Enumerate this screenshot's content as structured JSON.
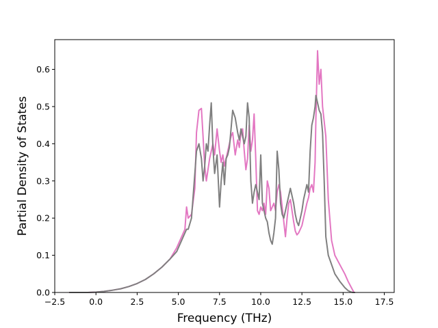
{
  "chart_data": {
    "type": "line",
    "title": "",
    "xlabel": "Frequency (THz)",
    "ylabel": "Partial Density of States",
    "xlim": [
      -2.5,
      18.1
    ],
    "ylim": [
      0.0,
      0.68
    ],
    "xticks": [
      -2.5,
      0.0,
      2.5,
      5.0,
      7.5,
      10.0,
      12.5,
      15.0,
      17.5
    ],
    "xtick_labels": [
      "−2.5",
      "0.0",
      "2.5",
      "5.0",
      "7.5",
      "10.0",
      "12.5",
      "15.0",
      "17.5"
    ],
    "yticks": [
      0.0,
      0.1,
      0.2,
      0.3,
      0.4,
      0.5,
      0.6
    ],
    "ytick_labels": [
      "0.0",
      "0.1",
      "0.2",
      "0.3",
      "0.4",
      "0.5",
      "0.6"
    ],
    "grid": false,
    "legend": "none",
    "series": [
      {
        "color": "#e377c2",
        "x": [
          -1.6,
          -0.5,
          0.0,
          0.5,
          1.0,
          1.5,
          2.0,
          2.5,
          3.0,
          3.5,
          4.0,
          4.5,
          4.9,
          5.2,
          5.4,
          5.5,
          5.6,
          5.8,
          6.0,
          6.1,
          6.25,
          6.4,
          6.5,
          6.6,
          6.7,
          6.8,
          6.9,
          7.0,
          7.1,
          7.2,
          7.35,
          7.5,
          7.6,
          7.7,
          7.8,
          7.9,
          8.0,
          8.1,
          8.2,
          8.3,
          8.45,
          8.6,
          8.7,
          8.8,
          8.9,
          9.0,
          9.1,
          9.2,
          9.3,
          9.4,
          9.5,
          9.6,
          9.7,
          9.8,
          9.9,
          10.0,
          10.1,
          10.2,
          10.3,
          10.4,
          10.5,
          10.6,
          10.7,
          10.8,
          10.9,
          11.0,
          11.1,
          11.2,
          11.3,
          11.4,
          11.5,
          11.6,
          11.7,
          11.8,
          11.9,
          12.0,
          12.1,
          12.2,
          12.3,
          12.4,
          12.5,
          12.6,
          12.7,
          12.8,
          12.9,
          13.0,
          13.1,
          13.2,
          13.3,
          13.35,
          13.45,
          13.55,
          13.65,
          13.75,
          13.85,
          13.95,
          14.1,
          14.3,
          14.5,
          14.8,
          15.1,
          15.3,
          15.5,
          15.6,
          15.65,
          15.7
        ],
        "y": [
          0.0,
          0.0,
          0.001,
          0.003,
          0.006,
          0.01,
          0.016,
          0.024,
          0.035,
          0.05,
          0.068,
          0.09,
          0.12,
          0.15,
          0.17,
          0.23,
          0.2,
          0.21,
          0.28,
          0.43,
          0.49,
          0.495,
          0.42,
          0.34,
          0.3,
          0.33,
          0.36,
          0.38,
          0.4,
          0.37,
          0.44,
          0.38,
          0.35,
          0.37,
          0.34,
          0.36,
          0.38,
          0.4,
          0.42,
          0.43,
          0.37,
          0.41,
          0.39,
          0.43,
          0.44,
          0.38,
          0.33,
          0.36,
          0.45,
          0.38,
          0.41,
          0.48,
          0.36,
          0.22,
          0.21,
          0.23,
          0.22,
          0.24,
          0.21,
          0.3,
          0.28,
          0.22,
          0.23,
          0.24,
          0.22,
          0.27,
          0.29,
          0.27,
          0.23,
          0.19,
          0.15,
          0.2,
          0.24,
          0.25,
          0.22,
          0.19,
          0.165,
          0.155,
          0.16,
          0.17,
          0.18,
          0.2,
          0.22,
          0.24,
          0.255,
          0.28,
          0.29,
          0.27,
          0.35,
          0.47,
          0.65,
          0.56,
          0.6,
          0.5,
          0.46,
          0.42,
          0.25,
          0.14,
          0.1,
          0.075,
          0.05,
          0.03,
          0.013,
          0.005,
          0.001,
          0.0
        ]
      },
      {
        "color": "#7f7f7f",
        "x": [
          -1.6,
          -0.5,
          0.0,
          0.5,
          1.0,
          1.5,
          2.0,
          2.5,
          3.0,
          3.5,
          4.0,
          4.5,
          4.9,
          5.2,
          5.4,
          5.5,
          5.6,
          5.8,
          6.0,
          6.1,
          6.25,
          6.4,
          6.5,
          6.6,
          6.7,
          6.8,
          6.9,
          7.0,
          7.1,
          7.2,
          7.35,
          7.5,
          7.6,
          7.7,
          7.8,
          7.9,
          8.0,
          8.1,
          8.2,
          8.3,
          8.45,
          8.6,
          8.7,
          8.8,
          8.9,
          9.0,
          9.1,
          9.2,
          9.3,
          9.4,
          9.5,
          9.6,
          9.7,
          9.8,
          9.9,
          10.0,
          10.1,
          10.2,
          10.3,
          10.4,
          10.5,
          10.6,
          10.7,
          10.8,
          10.9,
          11.0,
          11.1,
          11.2,
          11.3,
          11.4,
          11.5,
          11.6,
          11.7,
          11.8,
          11.9,
          12.0,
          12.1,
          12.2,
          12.3,
          12.4,
          12.5,
          12.6,
          12.7,
          12.8,
          12.9,
          13.0,
          13.1,
          13.2,
          13.3,
          13.35,
          13.45,
          13.55,
          13.65,
          13.75,
          13.85,
          13.95,
          14.1,
          14.3,
          14.5,
          14.8,
          15.1,
          15.3,
          15.5,
          15.6,
          15.65,
          15.7
        ],
        "y": [
          0.0,
          0.0,
          0.001,
          0.003,
          0.006,
          0.01,
          0.016,
          0.024,
          0.035,
          0.05,
          0.068,
          0.09,
          0.11,
          0.14,
          0.16,
          0.17,
          0.17,
          0.2,
          0.32,
          0.38,
          0.4,
          0.36,
          0.3,
          0.34,
          0.4,
          0.38,
          0.45,
          0.51,
          0.39,
          0.32,
          0.37,
          0.23,
          0.3,
          0.35,
          0.29,
          0.36,
          0.37,
          0.39,
          0.44,
          0.49,
          0.47,
          0.43,
          0.41,
          0.44,
          0.42,
          0.4,
          0.42,
          0.51,
          0.47,
          0.3,
          0.24,
          0.27,
          0.29,
          0.27,
          0.25,
          0.37,
          0.24,
          0.22,
          0.2,
          0.19,
          0.16,
          0.14,
          0.13,
          0.16,
          0.2,
          0.38,
          0.33,
          0.24,
          0.21,
          0.2,
          0.22,
          0.24,
          0.26,
          0.28,
          0.26,
          0.24,
          0.21,
          0.19,
          0.18,
          0.2,
          0.22,
          0.25,
          0.27,
          0.29,
          0.27,
          0.38,
          0.45,
          0.47,
          0.5,
          0.53,
          0.51,
          0.49,
          0.48,
          0.43,
          0.3,
          0.15,
          0.1,
          0.075,
          0.05,
          0.03,
          0.013,
          0.005,
          0.001,
          0.0,
          0.0,
          0.0
        ]
      }
    ]
  }
}
